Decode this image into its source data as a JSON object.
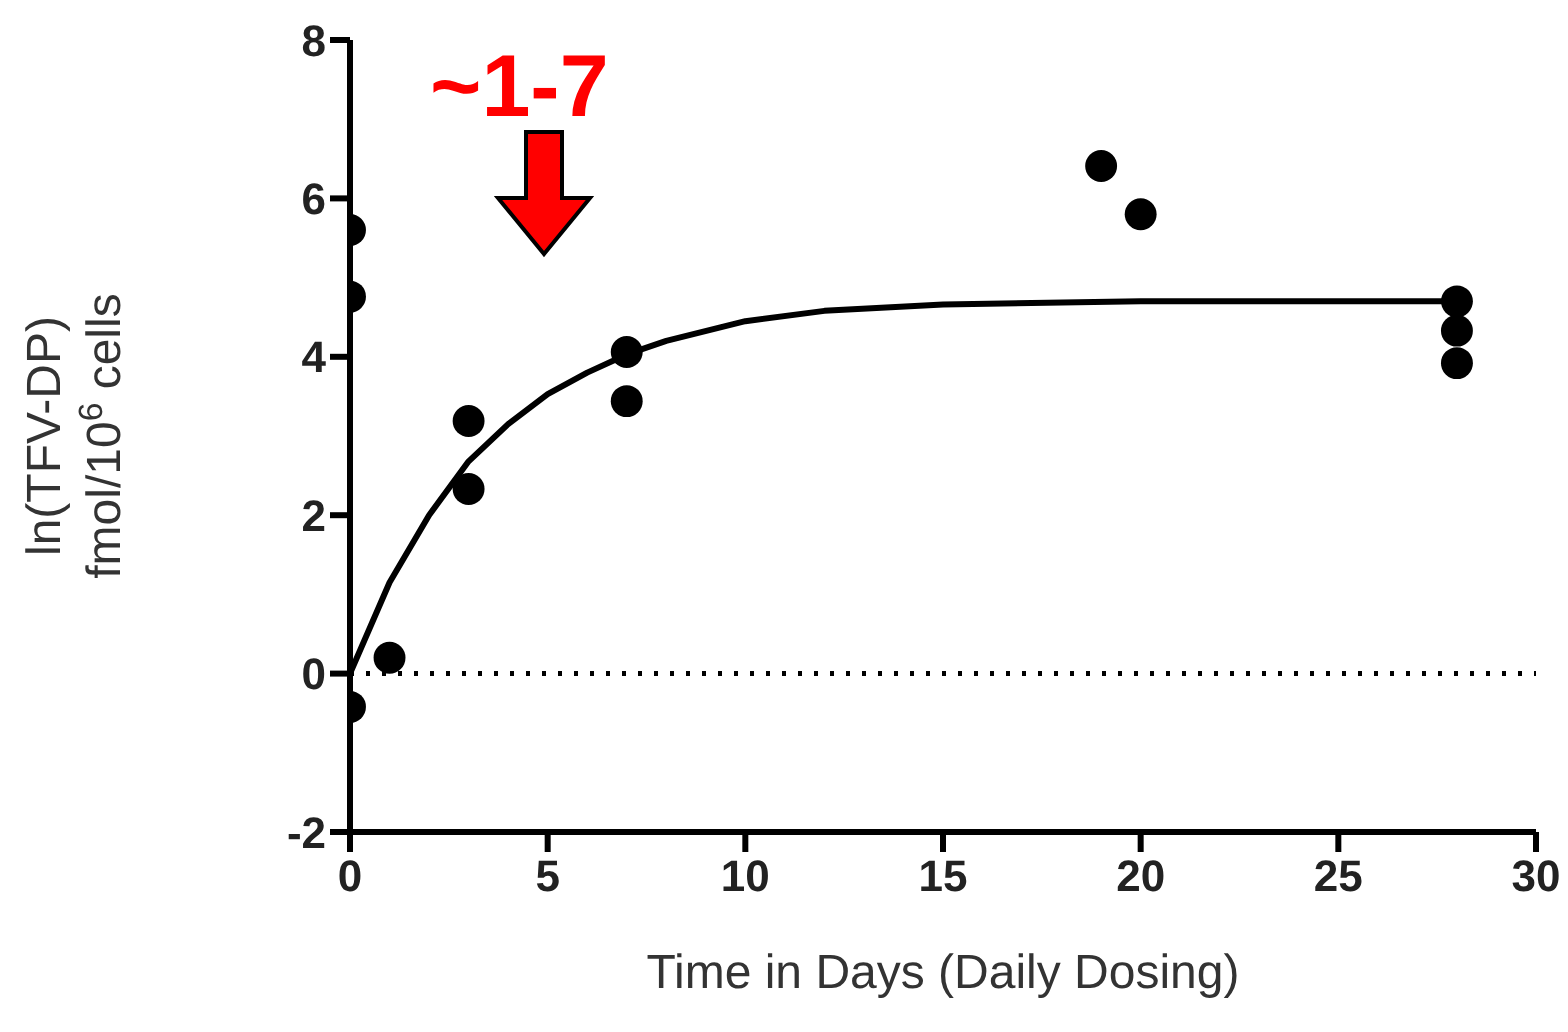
{
  "chart_data": {
    "type": "scatter",
    "xlabel": "Time in Days (Daily Dosing)",
    "ylabel": "ln(TFV-DP)\nfmol/10$^{6}$ cells",
    "annotations": [
      "~1-7"
    ],
    "xlim": [
      0,
      30
    ],
    "xticks": [
      0,
      5,
      10,
      15,
      20,
      25,
      30
    ],
    "ylim": [
      -2,
      8
    ],
    "yticks": [
      -2,
      0,
      2,
      4,
      6,
      8
    ],
    "grid": false,
    "legend": false,
    "marker": "circle",
    "ref_lines": [
      {
        "axis": "y",
        "value": 0,
        "line_style": "dotted",
        "color": "#000000"
      }
    ],
    "series": [
      {
        "color": "#000000",
        "x": [
          0,
          0,
          0,
          1,
          3,
          3,
          7,
          7,
          19,
          20,
          28,
          28,
          28
        ],
        "values": [
          5.6,
          4.76,
          -0.42,
          0.2,
          3.19,
          2.33,
          4.06,
          3.44,
          6.41,
          5.8,
          4.7,
          4.33,
          3.92
        ]
      },
      {
        "type": "line",
        "color": "#000000",
        "marker": "none",
        "line_style": "solid",
        "x": [
          0,
          1,
          2,
          3,
          4,
          5,
          6,
          7,
          8,
          10,
          12,
          15,
          20,
          28
        ],
        "values": [
          0,
          1.15,
          2.0,
          2.68,
          3.15,
          3.53,
          3.8,
          4.03,
          4.2,
          4.45,
          4.58,
          4.66,
          4.7,
          4.7
        ]
      }
    ]
  }
}
